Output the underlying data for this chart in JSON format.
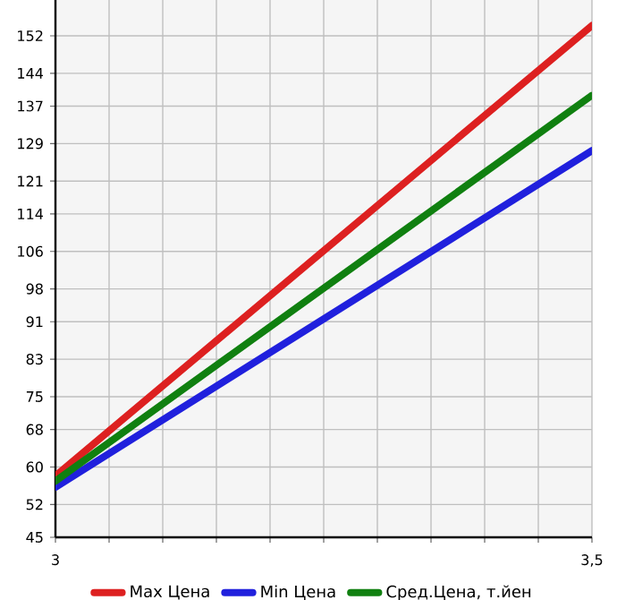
{
  "chart_data": {
    "type": "line",
    "x": [
      3,
      3.5
    ],
    "series": [
      {
        "name": "Max Цена",
        "color": "#dd2020",
        "values": [
          58.1,
          154.2
        ]
      },
      {
        "name": "Min Цена",
        "color": "#2020dd",
        "values": [
          55.7,
          127.5
        ]
      },
      {
        "name": "Сред.Цена, т.йен",
        "color": "#108010",
        "values": [
          57.0,
          139.3
        ]
      }
    ],
    "xlim": [
      3,
      3.5
    ],
    "ylim": [
      45,
      159.64
    ],
    "xticks": [
      {
        "value": 3,
        "label": "3"
      },
      {
        "value": 3.05,
        "label": null
      },
      {
        "value": 3.1,
        "label": null
      },
      {
        "value": 3.15,
        "label": null
      },
      {
        "value": 3.2,
        "label": null
      },
      {
        "value": 3.25,
        "label": null
      },
      {
        "value": 3.3,
        "label": null
      },
      {
        "value": 3.35,
        "label": null
      },
      {
        "value": 3.4,
        "label": null
      },
      {
        "value": 3.45,
        "label": null
      },
      {
        "value": 3.5,
        "label": "3,5"
      }
    ],
    "yticks": [
      45,
      52,
      60,
      68,
      75,
      83,
      91,
      98,
      106,
      114,
      121,
      129,
      137,
      144,
      152
    ],
    "grid": true,
    "legend": "bottom",
    "marker": "none",
    "line_style": "solid"
  }
}
